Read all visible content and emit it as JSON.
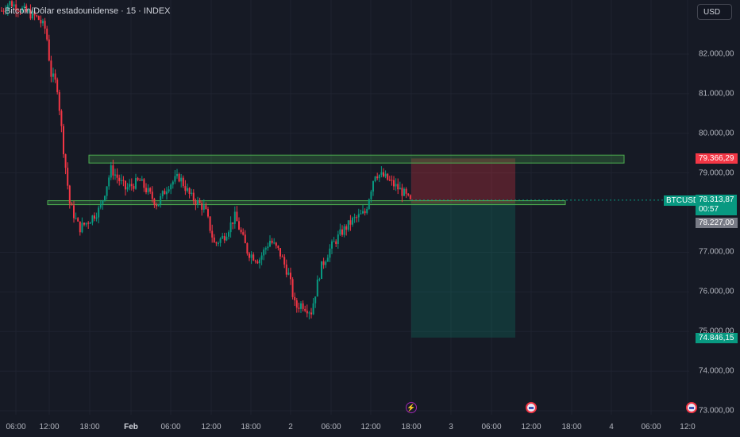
{
  "header": {
    "title": "Bitcoin/Dólar estadounidense · 15 · INDEX",
    "currency_button": "USD"
  },
  "price_axis": {
    "ticks": [
      "82.000,00",
      "81.000,00",
      "80.000,00",
      "79.000,00",
      "77.000,00",
      "76.000,00",
      "75.000,00",
      "74.000,00",
      "73.000,00"
    ],
    "tick_values": [
      82000,
      81000,
      80000,
      79000,
      77000,
      76000,
      75000,
      74000,
      73000
    ]
  },
  "time_axis": {
    "ticks": [
      "06:00",
      "12:00",
      "18:00",
      "Feb",
      "06:00",
      "12:00",
      "18:00",
      "2",
      "06:00",
      "12:00",
      "18:00",
      "3",
      "06:00",
      "12:00",
      "18:00",
      "4",
      "06:00",
      "12:0"
    ]
  },
  "price_tags": {
    "stop_value": "79.366,29",
    "target_value": "74.846,15",
    "current_value": "78.313,87",
    "countdown": "00:57",
    "last_value": "78.227,00",
    "symbol": "BTCUSD"
  },
  "colors": {
    "up": "#089981",
    "down": "#f23645",
    "zone": "#4caf50",
    "background": "#161a25"
  },
  "events": [
    {
      "icon": "lightning-icon"
    },
    {
      "icon": "us-flag-icon"
    },
    {
      "icon": "us-flag-icon"
    }
  ],
  "chart_data": {
    "type": "candlestick",
    "title": "Bitcoin/Dólar estadounidense · 15 · INDEX",
    "ylim": [
      72800,
      83500
    ],
    "close_path": [
      [
        0,
        83050
      ],
      [
        12,
        83300
      ],
      [
        48,
        82900
      ],
      [
        58,
        82600
      ],
      [
        64,
        81500
      ],
      [
        72,
        81200
      ],
      [
        80,
        79600
      ],
      [
        88,
        78200
      ],
      [
        100,
        77600
      ],
      [
        112,
        77800
      ],
      [
        126,
        78100
      ],
      [
        140,
        79100
      ],
      [
        158,
        78600
      ],
      [
        176,
        78800
      ],
      [
        198,
        78200
      ],
      [
        212,
        78700
      ],
      [
        226,
        78900
      ],
      [
        240,
        78400
      ],
      [
        258,
        78100
      ],
      [
        270,
        77200
      ],
      [
        282,
        77400
      ],
      [
        296,
        77900
      ],
      [
        312,
        77000
      ],
      [
        326,
        76800
      ],
      [
        340,
        77300
      ],
      [
        352,
        77000
      ],
      [
        364,
        76400
      ],
      [
        372,
        75600
      ],
      [
        380,
        75700
      ],
      [
        392,
        75500
      ],
      [
        404,
        76600
      ],
      [
        416,
        77100
      ],
      [
        430,
        77500
      ],
      [
        444,
        77800
      ],
      [
        460,
        78000
      ],
      [
        472,
        79000
      ],
      [
        484,
        78900
      ],
      [
        496,
        78700
      ],
      [
        508,
        78500
      ],
      [
        518,
        78227
      ]
    ],
    "resistance_zone": [
      79250,
      79450
    ],
    "support_zone": [
      78200,
      78300
    ],
    "short_position": {
      "entry": 78227,
      "stop": 79366.29,
      "target": 74846.15
    }
  }
}
